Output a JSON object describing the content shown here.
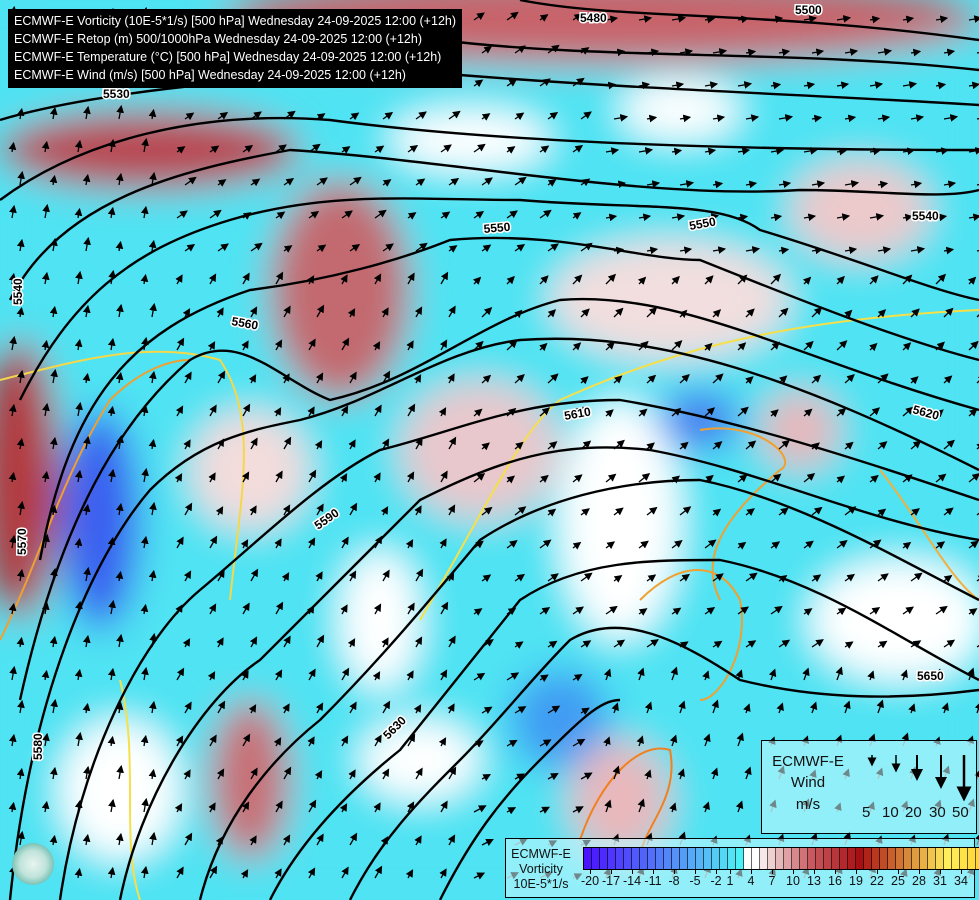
{
  "title_lines": [
    "ECMWF-E Vorticity (10E-5*1/s) [500 hPa] Wednesday 24-09-2025 12:00 (+12h)",
    "ECMWF-E Retop (m) 500/1000hPa Wednesday 24-09-2025 12:00 (+12h)",
    "ECMWF-E Temperature (°C) [500 hPa] Wednesday 24-09-2025 12:00 (+12h)",
    "ECMWF-E Wind (m/s) [500 hPa] Wednesday 24-09-2025 12:00 (+12h)"
  ],
  "contour_labels": [
    "5480",
    "5500",
    "5530",
    "5540",
    "5540",
    "5550",
    "5550",
    "5560",
    "5570",
    "5580",
    "5590",
    "5610",
    "5620",
    "5630",
    "5650"
  ],
  "wind_legend": {
    "title": "ECMWF-E",
    "subtitle": "Wind",
    "unit": "m/s",
    "speeds": [
      "5",
      "10",
      "20",
      "30",
      "50"
    ]
  },
  "vorticity_legend": {
    "title": "ECMWF-E",
    "subtitle": "Vorticity",
    "unit": "10E-5*1/s",
    "tick_labels": [
      "-20",
      "-17",
      "-14",
      "-11",
      "-8",
      "-5",
      "-2",
      "1",
      "4",
      "7",
      "10",
      "13",
      "16",
      "19",
      "22",
      "25",
      "28",
      "31",
      "34"
    ],
    "range": [
      -20,
      35
    ],
    "colors": {
      "strong_negative": "#4b14ff",
      "negative": "#56b4f5",
      "weak_negative": "#4ff0f5",
      "zero": "#ffffff",
      "positive": "#c85a5f",
      "strong_positive": "#a80f12",
      "high": "#ffee5a",
      "max": "#ffb000"
    }
  },
  "colors": {
    "background_cyan": "#4fe3f3",
    "contour": "#000000",
    "temperature_isotherm": "#f5c842"
  }
}
